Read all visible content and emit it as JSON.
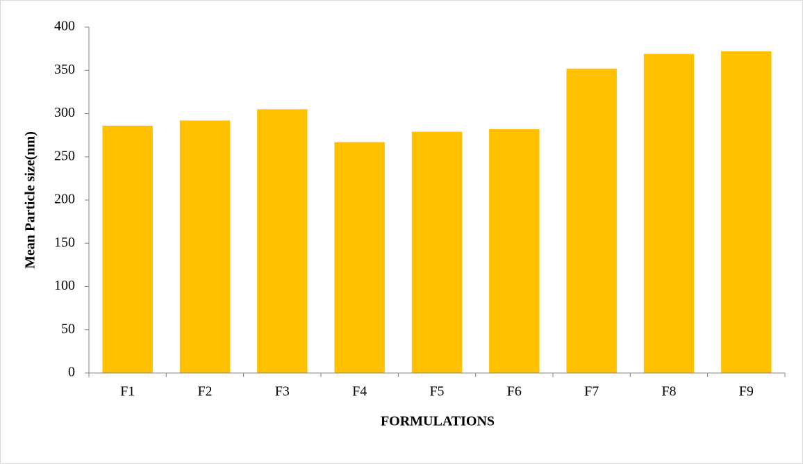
{
  "chart_data": {
    "type": "bar",
    "categories": [
      "F1",
      "F2",
      "F3",
      "F4",
      "F5",
      "F6",
      "F7",
      "F8",
      "F9"
    ],
    "values": [
      286,
      292,
      305,
      267,
      279,
      282,
      352,
      369,
      372
    ],
    "color": "#ffc000",
    "xlabel": "FORMULATIONS",
    "ylabel": "Mean Particle size(nm)",
    "ylim": [
      0,
      400
    ],
    "yticks": [
      0,
      50,
      100,
      150,
      200,
      250,
      300,
      350,
      400
    ]
  }
}
